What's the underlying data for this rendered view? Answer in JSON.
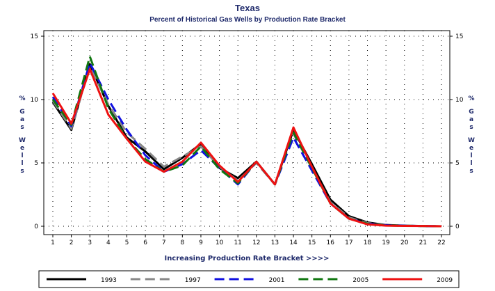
{
  "chart_data": {
    "type": "line",
    "title": "Texas",
    "subtitle": "Percent of Historical Gas Wells by Production Rate Bracket",
    "xlabel": "Increasing Production Rate Bracket >>>>",
    "ylabel": "% Gas Wells",
    "x": [
      1,
      2,
      3,
      4,
      5,
      6,
      7,
      8,
      9,
      10,
      11,
      12,
      13,
      14,
      15,
      16,
      17,
      18,
      19,
      20,
      21,
      22
    ],
    "ylim": [
      0,
      15
    ],
    "yticks": [
      0,
      5,
      10,
      15
    ],
    "grid": true,
    "legend_position": "bottom",
    "series": [
      {
        "name": "1993",
        "color": "#000000",
        "dash": "solid",
        "values": [
          9.8,
          7.6,
          12.8,
          9.5,
          7.0,
          5.9,
          4.5,
          5.4,
          6.5,
          4.6,
          3.8,
          5.1,
          3.3,
          7.6,
          4.9,
          2.1,
          0.8,
          0.3,
          0.1,
          0.05,
          0.02,
          0.0
        ]
      },
      {
        "name": "1997",
        "color": "#888888",
        "dash": "long",
        "values": [
          9.9,
          7.7,
          12.6,
          9.6,
          7.4,
          6.1,
          4.7,
          5.5,
          6.3,
          4.7,
          3.6,
          5.0,
          3.3,
          7.3,
          4.6,
          1.9,
          0.7,
          0.25,
          0.08,
          0.04,
          0.02,
          0.0
        ]
      },
      {
        "name": "2001",
        "color": "#1010e0",
        "dash": "long",
        "values": [
          10.2,
          7.9,
          12.9,
          10.0,
          7.6,
          5.6,
          4.3,
          4.9,
          6.0,
          4.6,
          3.3,
          5.1,
          3.3,
          7.0,
          4.4,
          1.8,
          0.6,
          0.2,
          0.08,
          0.04,
          0.02,
          0.0
        ]
      },
      {
        "name": "2005",
        "color": "#117711",
        "dash": "long",
        "values": [
          10.0,
          8.0,
          13.4,
          9.3,
          6.9,
          5.3,
          4.3,
          4.8,
          6.3,
          4.5,
          3.4,
          5.1,
          3.3,
          7.4,
          4.6,
          1.8,
          0.6,
          0.2,
          0.06,
          0.03,
          0.02,
          0.0
        ]
      },
      {
        "name": "2009",
        "color": "#ee1111",
        "dash": "solid",
        "values": [
          10.5,
          8.1,
          12.4,
          8.8,
          6.9,
          5.1,
          4.3,
          5.1,
          6.6,
          4.8,
          3.5,
          5.1,
          3.3,
          7.8,
          4.7,
          1.8,
          0.6,
          0.15,
          0.05,
          0.03,
          0.02,
          0.0
        ]
      }
    ]
  }
}
